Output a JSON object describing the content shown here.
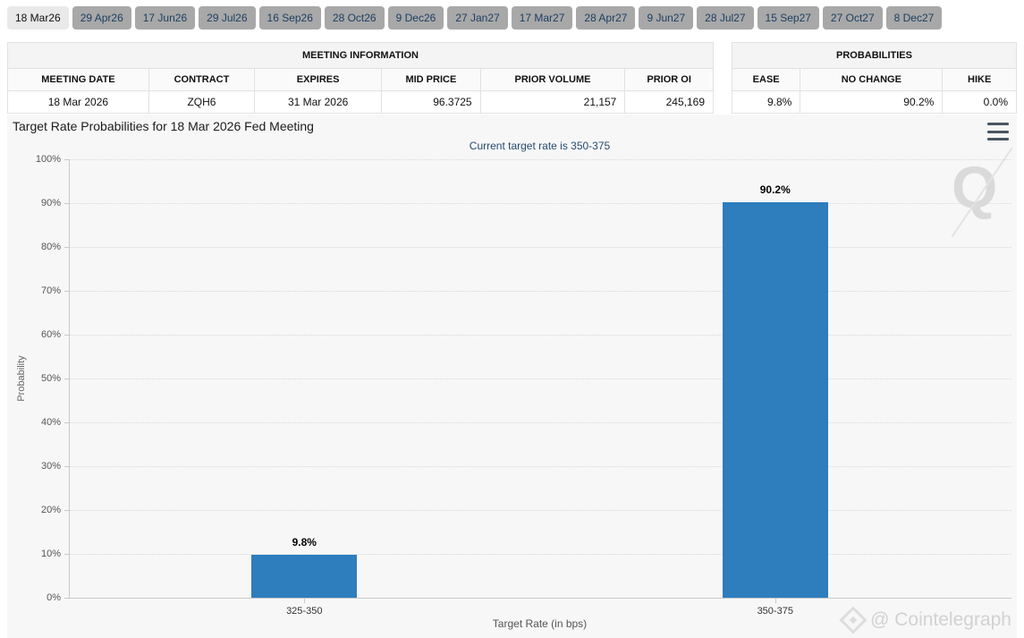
{
  "tabs": {
    "items": [
      {
        "label": "18 Mar26",
        "selected": true
      },
      {
        "label": "29 Apr26",
        "selected": false
      },
      {
        "label": "17 Jun26",
        "selected": false
      },
      {
        "label": "29 Jul26",
        "selected": false
      },
      {
        "label": "16 Sep26",
        "selected": false
      },
      {
        "label": "28 Oct26",
        "selected": false
      },
      {
        "label": "9 Dec26",
        "selected": false
      },
      {
        "label": "27 Jan27",
        "selected": false
      },
      {
        "label": "17 Mar27",
        "selected": false
      },
      {
        "label": "28 Apr27",
        "selected": false
      },
      {
        "label": "9 Jun27",
        "selected": false
      },
      {
        "label": "28 Jul27",
        "selected": false
      },
      {
        "label": "15 Sep27",
        "selected": false
      },
      {
        "label": "27 Oct27",
        "selected": false
      },
      {
        "label": "8 Dec27",
        "selected": false
      }
    ]
  },
  "meeting_information": {
    "title": "MEETING INFORMATION",
    "columns": [
      "MEETING DATE",
      "CONTRACT",
      "EXPIRES",
      "MID PRICE",
      "PRIOR VOLUME",
      "PRIOR OI"
    ],
    "row": [
      "18 Mar 2026",
      "ZQH6",
      "31 Mar 2026",
      "96.3725",
      "21,157",
      "245,169"
    ]
  },
  "probabilities": {
    "title": "PROBABILITIES",
    "columns": [
      "EASE",
      "NO CHANGE",
      "HIKE"
    ],
    "row": [
      "9.8%",
      "90.2%",
      "0.0%"
    ]
  },
  "chart": {
    "menu_icon": "hamburger-icon",
    "watermark_q": "Q",
    "watermark_brand": "@ Cointelegraph"
  },
  "chart_data": {
    "type": "bar",
    "title": "Target Rate Probabilities for 18 Mar 2026 Fed Meeting",
    "subtitle": "Current target rate is 350-375",
    "categories": [
      "325-350",
      "350-375"
    ],
    "values": [
      9.8,
      90.2
    ],
    "value_labels": [
      "9.8%",
      "90.2%"
    ],
    "xlabel": "Target Rate (in bps)",
    "ylabel": "Probability",
    "ylim": [
      0,
      100
    ],
    "ytick_step": 10,
    "ytick_suffix": "%",
    "grid": "dotted",
    "legend": "none",
    "bar_color": "#2e7dbd"
  },
  "colors": {
    "bar": "#2e7dbd",
    "tab_selected_bg": "#e9e9e9",
    "tab_bg": "#a8a8a8",
    "tab_text": "#1d3f63",
    "chart_bg": "#f7f7f8",
    "subtitle_text": "#274b6d",
    "axis_line": "#c9c9c9",
    "watermark": "#d2d2d2"
  }
}
